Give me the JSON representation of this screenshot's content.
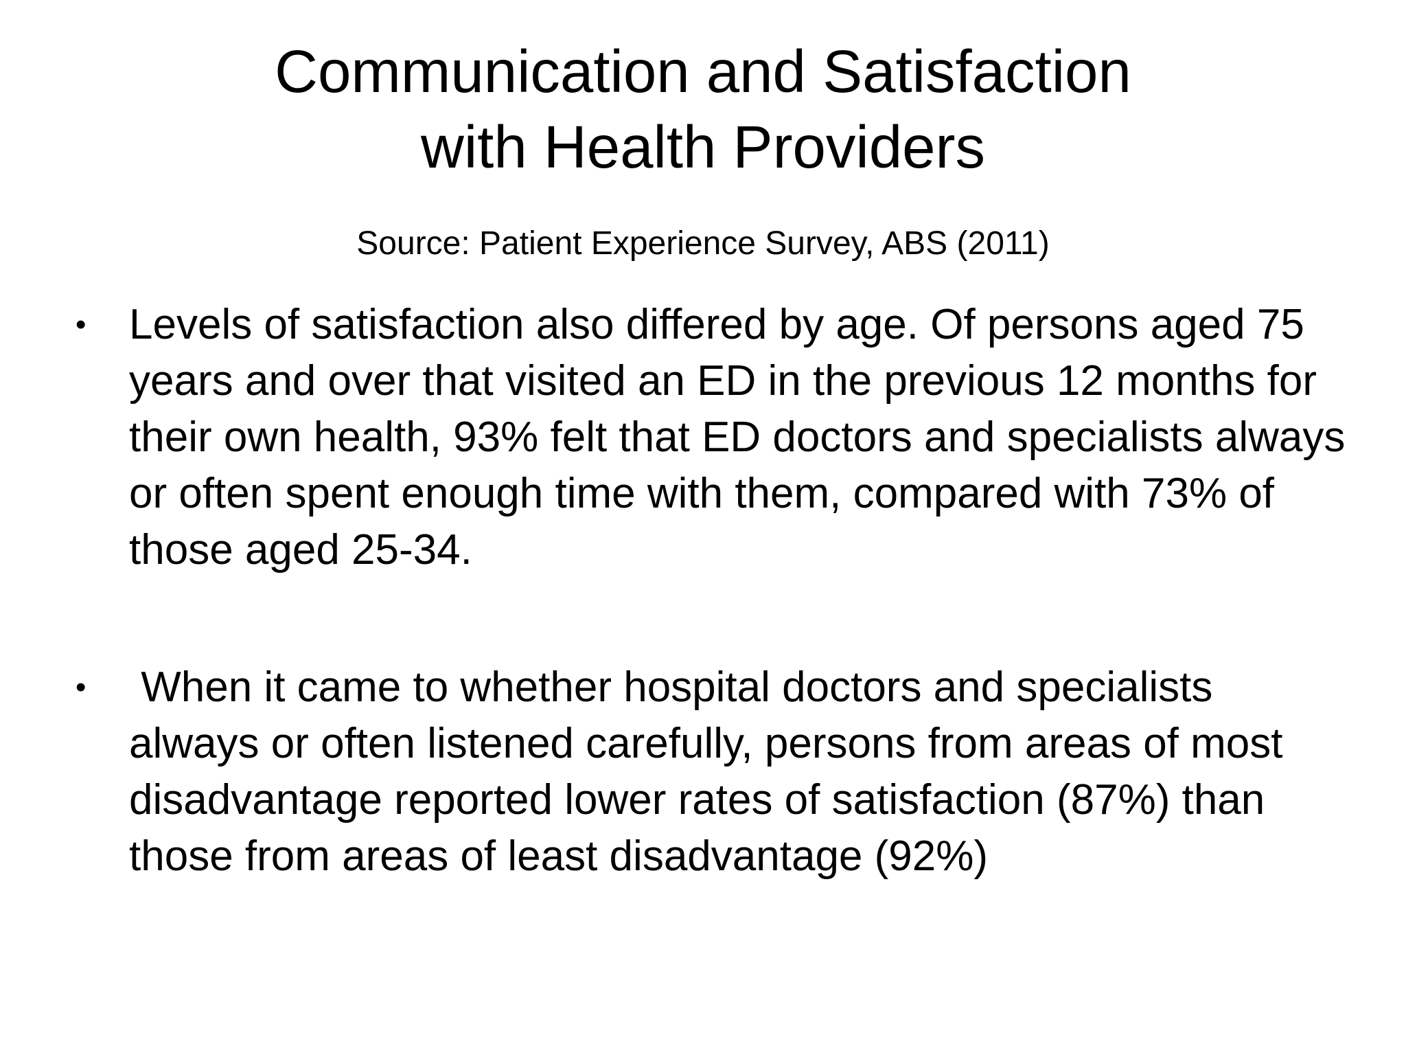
{
  "slide": {
    "title_line1": "Communication and Satisfaction",
    "title_line2": "with Health Providers",
    "source": "Source: Patient Experience Survey,  ABS (2011)",
    "bullets": [
      {
        "marker": "•",
        "text": "Levels of satisfaction also differed by age. Of persons aged 75 years and over that visited an ED in the previous 12 months for their own health, 93% felt that ED doctors and specialists always or often spent enough time with them, compared with 73% of those aged 25-34."
      },
      {
        "marker": "•",
        "text": " When it came to whether hospital doctors and specialists always or often listened carefully, persons from areas of most disadvantage reported lower rates of satisfaction (87%) than those from areas of least disadvantage (92%)"
      }
    ]
  }
}
